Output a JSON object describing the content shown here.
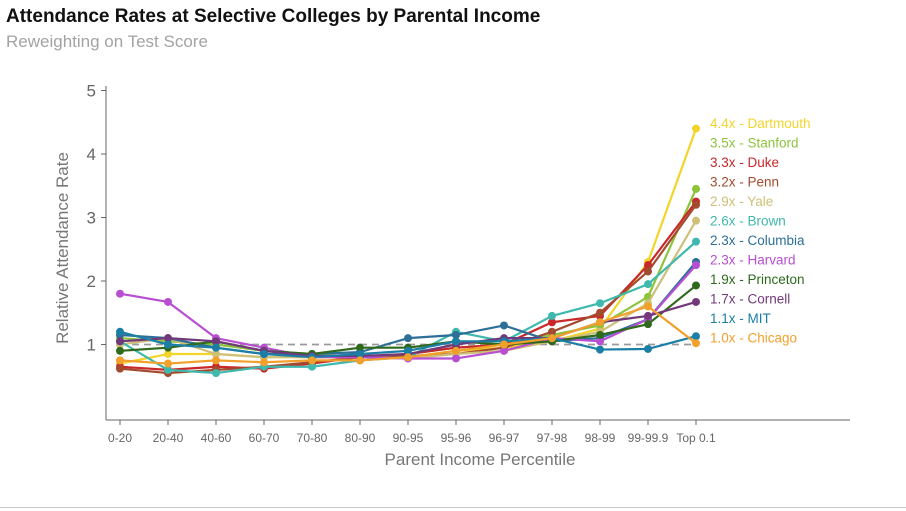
{
  "chart_data": {
    "type": "line",
    "title": "Attendance Rates at Selective Colleges by Parental Income",
    "subtitle": "Reweighting on Test Score",
    "xlabel": "Parent Income Percentile",
    "ylabel": "Relative Attendance Rate",
    "categories": [
      "0-20",
      "20-40",
      "40-60",
      "60-70",
      "70-80",
      "80-90",
      "90-95",
      "95-96",
      "96-97",
      "97-98",
      "98-99",
      "99-99.9",
      "Top 0.1"
    ],
    "ylim": [
      0,
      5
    ],
    "yticks": [
      "1",
      "2",
      "3",
      "4",
      "5"
    ],
    "reference_line": 1,
    "series": [
      {
        "name": "Dartmouth",
        "label": "4.4x - Dartmouth",
        "color": "#f2d42a",
        "values": [
          0.7,
          0.85,
          0.85,
          0.8,
          0.8,
          0.8,
          0.8,
          0.9,
          0.95,
          1.05,
          1.25,
          2.3,
          4.4
        ]
      },
      {
        "name": "Stanford",
        "label": "3.5x - Stanford",
        "color": "#8cc43c",
        "values": [
          1.1,
          1.05,
          1.0,
          0.9,
          0.85,
          0.8,
          0.85,
          0.95,
          1.0,
          1.15,
          1.3,
          1.75,
          3.45
        ]
      },
      {
        "name": "Duke",
        "label": "3.3x - Duke",
        "color": "#c8282a",
        "values": [
          0.65,
          0.6,
          0.65,
          0.62,
          0.7,
          0.8,
          0.85,
          0.95,
          1.0,
          1.35,
          1.45,
          2.25,
          3.25
        ]
      },
      {
        "name": "Penn",
        "label": "3.2x - Penn",
        "color": "#a24b2e",
        "values": [
          0.62,
          0.55,
          0.6,
          0.65,
          0.72,
          0.8,
          0.82,
          0.85,
          0.95,
          1.2,
          1.5,
          2.15,
          3.2
        ]
      },
      {
        "name": "Yale",
        "label": "2.9x - Yale",
        "color": "#cfc079",
        "values": [
          1.0,
          1.1,
          0.85,
          0.8,
          0.8,
          0.8,
          0.78,
          0.85,
          0.9,
          1.05,
          1.2,
          1.65,
          2.95
        ]
      },
      {
        "name": "Brown",
        "label": "2.6x - Brown",
        "color": "#3fb8ad",
        "values": [
          1.05,
          0.6,
          0.55,
          0.65,
          0.65,
          0.75,
          0.8,
          1.2,
          1.05,
          1.45,
          1.65,
          1.95,
          2.62
        ]
      },
      {
        "name": "Columbia",
        "label": "2.3x - Columbia",
        "color": "#2d6f97",
        "values": [
          1.15,
          1.1,
          0.95,
          0.85,
          0.85,
          0.88,
          1.1,
          1.15,
          1.3,
          1.05,
          1.1,
          1.4,
          2.3
        ]
      },
      {
        "name": "Harvard",
        "label": "2.3x - Harvard",
        "color": "#b84fd2",
        "values": [
          1.8,
          1.67,
          1.1,
          0.95,
          0.8,
          0.8,
          0.78,
          0.78,
          0.9,
          1.1,
          1.05,
          1.4,
          2.25
        ]
      },
      {
        "name": "Princeton",
        "label": "1.9x - Princeton",
        "color": "#2f6a1c",
        "values": [
          0.9,
          0.95,
          1.05,
          0.9,
          0.85,
          0.95,
          0.95,
          1.05,
          1.0,
          1.05,
          1.15,
          1.32,
          1.93
        ]
      },
      {
        "name": "Cornell",
        "label": "1.7x - Cornell",
        "color": "#72397a",
        "values": [
          1.05,
          1.1,
          1.05,
          0.9,
          0.82,
          0.82,
          0.85,
          1.0,
          1.1,
          1.1,
          1.35,
          1.45,
          1.67
        ]
      },
      {
        "name": "MIT",
        "label": "1.1x - MIT",
        "color": "#1b7ea6",
        "values": [
          1.2,
          1.0,
          0.95,
          0.85,
          0.8,
          0.85,
          0.9,
          1.05,
          1.05,
          1.1,
          0.92,
          0.93,
          1.13
        ]
      },
      {
        "name": "Chicago",
        "label": "1.0x - Chicago",
        "color": "#f2a02c",
        "values": [
          0.75,
          0.7,
          0.75,
          0.72,
          0.75,
          0.75,
          0.8,
          0.9,
          1.0,
          1.1,
          1.35,
          1.6,
          1.02
        ]
      }
    ]
  }
}
